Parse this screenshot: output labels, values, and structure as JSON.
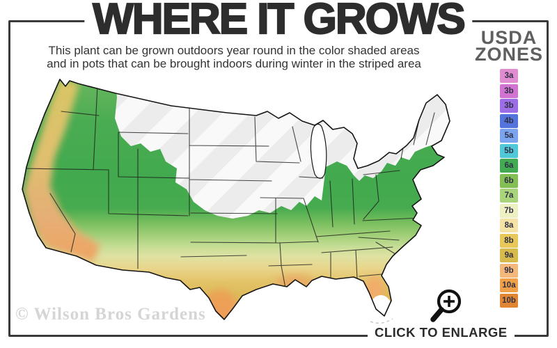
{
  "header": {
    "title": "WHERE IT GROWS",
    "subtitle_line1": "This plant can be grown outdoors year round in the color shaded areas",
    "subtitle_line2": "and in pots that can be brought indoors during winter in the striped area"
  },
  "legend": {
    "title_line1": "USDA",
    "title_line2": "ZONES",
    "zones": [
      {
        "label": "3a",
        "color": "#df8cd1"
      },
      {
        "label": "3b",
        "color": "#d173d0"
      },
      {
        "label": "3b",
        "color": "#9c6de6"
      },
      {
        "label": "4b",
        "color": "#5274dc"
      },
      {
        "label": "5a",
        "color": "#7aa5ee"
      },
      {
        "label": "5b",
        "color": "#50c8d8"
      },
      {
        "label": "6a",
        "color": "#42aa50"
      },
      {
        "label": "6b",
        "color": "#84bf55"
      },
      {
        "label": "7a",
        "color": "#a9d47c"
      },
      {
        "label": "7b",
        "color": "#eef0c2"
      },
      {
        "label": "8a",
        "color": "#f4e3a4"
      },
      {
        "label": "8b",
        "color": "#e9c85a"
      },
      {
        "label": "9a",
        "color": "#d7ba4c"
      },
      {
        "label": "9b",
        "color": "#f3b87a"
      },
      {
        "label": "10a",
        "color": "#f0a047"
      },
      {
        "label": "10b",
        "color": "#e08532"
      }
    ]
  },
  "footer": {
    "watermark": "© Wilson Bros Gardens",
    "cta": "CLICK TO ENLARGE"
  },
  "colors": {
    "frame": "#3a3a3a",
    "title_text": "#2d2d2d",
    "subtitle_text": "#333333",
    "legend_title": "#5f5f5f",
    "watermark": "#d5d5d5",
    "cta_text": "#2b2b2b"
  }
}
